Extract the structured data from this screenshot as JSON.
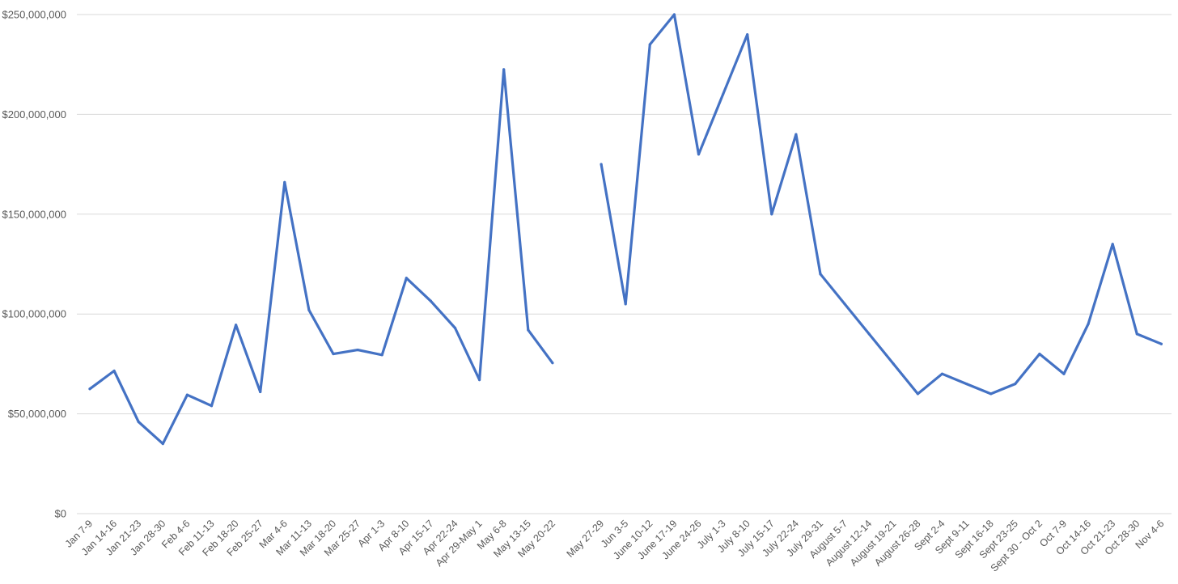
{
  "chart_data": {
    "type": "line",
    "title": "",
    "xlabel": "",
    "ylabel": "",
    "ylim": [
      0,
      250000000
    ],
    "yticks": [
      0,
      50000000,
      100000000,
      150000000,
      200000000,
      250000000
    ],
    "ytick_labels": [
      "$0",
      "$50,000,000",
      "$100,000,000",
      "$150,000,000",
      "$200,000,000",
      "$250,000,000"
    ],
    "grid": true,
    "legend": "none",
    "line_color": "#4472C4",
    "gridline_color": "#D9D9D9",
    "categories": [
      "Jan 7-9",
      "Jan 14-16",
      "Jan 21-23",
      "Jan 28-30",
      "Feb 4-6",
      "Feb 11-13",
      "Feb 18-20",
      "Feb 25-27",
      "Mar 4-6",
      "Mar 11-13",
      "Mar 18-20",
      "Mar 25-27",
      "Apr 1-3",
      "Apr 8-10",
      "Apr 15-17",
      "Apr 22-24",
      "Apr 29-May 1",
      "May 6-8",
      "May 13-15",
      "May 20-22",
      "",
      "May 27-29",
      "Jun 3-5",
      "June 10-12",
      "June 17-19",
      "June 24-26",
      "July 1-3",
      "July 8-10",
      "July 15-17",
      "July 22-24",
      "July 29-31",
      "August 5-7",
      "August 12-14",
      "August 19-21",
      "August 26-28",
      "Sept 2-4",
      "Sept 9-11",
      "Sept 16-18",
      "Sept 23-25",
      "Sept 30 - Oct 2",
      "Oct 7-9",
      "Oct 14-16",
      "Oct 21-23",
      "Oct 28-30",
      "Nov 4-6"
    ],
    "series": [
      {
        "values": [
          62500000,
          71500000,
          46000000,
          35000000,
          59500000,
          54000000,
          94500000,
          61000000,
          166000000,
          102000000,
          80000000,
          82000000,
          79500000,
          118000000,
          106500000,
          93000000,
          67000000,
          222500000,
          92000000,
          75500000,
          null,
          175000000,
          105000000,
          235000000,
          250000000,
          180000000,
          210000000,
          240000000,
          150000000,
          190000000,
          120000000,
          105000000,
          90000000,
          75000000,
          60000000,
          70000000,
          65000000,
          60000000,
          65000000,
          80000000,
          70000000,
          95000000,
          135000000,
          90000000,
          85000000
        ]
      }
    ]
  }
}
